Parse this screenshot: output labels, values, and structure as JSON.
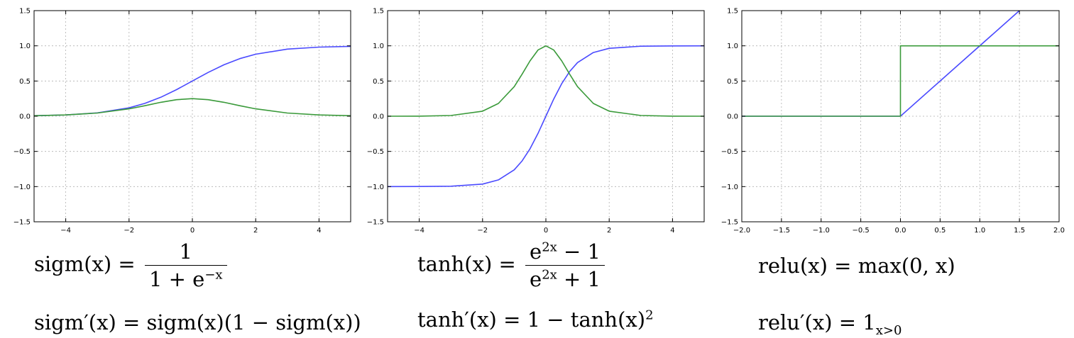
{
  "chart_data": [
    {
      "type": "line",
      "title": "",
      "xlabel": "",
      "ylabel": "",
      "xlim": [
        -5,
        5
      ],
      "ylim": [
        -1.5,
        1.5
      ],
      "grid": true,
      "xticks": [
        -4,
        -2,
        0,
        2,
        4
      ],
      "xtick_labels": [
        "−4",
        "−2",
        "0",
        "2",
        "4"
      ],
      "yticks": [
        -1.5,
        -1.0,
        -0.5,
        0.0,
        0.5,
        1.0,
        1.5
      ],
      "ytick_labels": [
        "−1.5",
        "−1.0",
        "−0.5",
        "0.0",
        "0.5",
        "1.0",
        "1.5"
      ],
      "series": [
        {
          "color": "#4a4aff",
          "x": [
            -5,
            -4,
            -3,
            -2,
            -1.5,
            -1,
            -0.5,
            0,
            0.5,
            1,
            1.5,
            2,
            3,
            4,
            5
          ],
          "y": [
            0.007,
            0.018,
            0.047,
            0.119,
            0.182,
            0.269,
            0.378,
            0.5,
            0.622,
            0.731,
            0.818,
            0.881,
            0.953,
            0.982,
            0.993
          ]
        },
        {
          "color": "#3a9a3a",
          "x": [
            -5,
            -4,
            -3,
            -2,
            -1.5,
            -1,
            -0.5,
            0,
            0.5,
            1,
            1.5,
            2,
            3,
            4,
            5
          ],
          "y": [
            0.007,
            0.018,
            0.045,
            0.105,
            0.149,
            0.197,
            0.235,
            0.25,
            0.235,
            0.197,
            0.149,
            0.105,
            0.045,
            0.018,
            0.007
          ]
        }
      ]
    },
    {
      "type": "line",
      "title": "",
      "xlabel": "",
      "ylabel": "",
      "xlim": [
        -5,
        5
      ],
      "ylim": [
        -1.5,
        1.5
      ],
      "grid": true,
      "xticks": [
        -4,
        -2,
        0,
        2,
        4
      ],
      "xtick_labels": [
        "−4",
        "−2",
        "0",
        "2",
        "4"
      ],
      "yticks": [
        -1.5,
        -1.0,
        -0.5,
        0.0,
        0.5,
        1.0,
        1.5
      ],
      "ytick_labels": [
        "−1.5",
        "−1.0",
        "−0.5",
        "0.0",
        "0.5",
        "1.0",
        "1.5"
      ],
      "series": [
        {
          "color": "#4a4aff",
          "x": [
            -5,
            -4,
            -3,
            -2,
            -1.5,
            -1,
            -0.75,
            -0.5,
            -0.25,
            0,
            0.25,
            0.5,
            0.75,
            1,
            1.5,
            2,
            3,
            4,
            5
          ],
          "y": [
            -1.0,
            -0.999,
            -0.995,
            -0.964,
            -0.905,
            -0.762,
            -0.635,
            -0.462,
            -0.245,
            0,
            0.245,
            0.462,
            0.635,
            0.762,
            0.905,
            0.964,
            0.995,
            0.999,
            1.0
          ]
        },
        {
          "color": "#3a9a3a",
          "x": [
            -5,
            -4,
            -3,
            -2,
            -1.5,
            -1,
            -0.75,
            -0.5,
            -0.25,
            0,
            0.25,
            0.5,
            0.75,
            1,
            1.5,
            2,
            3,
            4,
            5
          ],
          "y": [
            0.0,
            0.001,
            0.01,
            0.071,
            0.181,
            0.42,
            0.597,
            0.786,
            0.94,
            1.0,
            0.94,
            0.786,
            0.597,
            0.42,
            0.181,
            0.071,
            0.01,
            0.001,
            0.0
          ]
        }
      ]
    },
    {
      "type": "line",
      "title": "",
      "xlabel": "",
      "ylabel": "",
      "xlim": [
        -2,
        2
      ],
      "ylim": [
        -1.5,
        1.5
      ],
      "grid": true,
      "xticks": [
        -2.0,
        -1.5,
        -1.0,
        -0.5,
        0.0,
        0.5,
        1.0,
        1.5,
        2.0
      ],
      "xtick_labels": [
        "−2.0",
        "−1.5",
        "−1.0",
        "−0.5",
        "0.0",
        "0.5",
        "1.0",
        "1.5",
        "2.0"
      ],
      "yticks": [
        -1.5,
        -1.0,
        -0.5,
        0.0,
        0.5,
        1.0,
        1.5
      ],
      "ytick_labels": [
        "−1.5",
        "−1.0",
        "−0.5",
        "0.0",
        "0.5",
        "1.0",
        "1.5"
      ],
      "series": [
        {
          "color": "#4a4aff",
          "x": [
            -2,
            0,
            1.5
          ],
          "y": [
            0,
            0,
            1.5
          ]
        },
        {
          "color": "#3a9a3a",
          "x": [
            -2,
            0,
            0,
            2
          ],
          "y": [
            0,
            0,
            1,
            1
          ]
        }
      ]
    }
  ],
  "formulas": {
    "sigm": {
      "lhs": "sigm(x) =",
      "num": "1",
      "den_base": "1 + e",
      "den_exp": "−x",
      "deriv": "sigm′(x) = sigm(x)(1 − sigm(x))"
    },
    "tanh": {
      "lhs": "tanh(x) =",
      "num_base": "e",
      "num_exp": "2x",
      "num_tail": " − 1",
      "den_base": "e",
      "den_exp": "2x",
      "den_tail": " + 1",
      "deriv": "tanh′(x) = 1 − tanh(x)",
      "deriv_exp": "2"
    },
    "relu": {
      "lhs": "relu(x) = max(0, x)",
      "deriv": "relu′(x) = 1",
      "deriv_sub": "x>0"
    }
  }
}
